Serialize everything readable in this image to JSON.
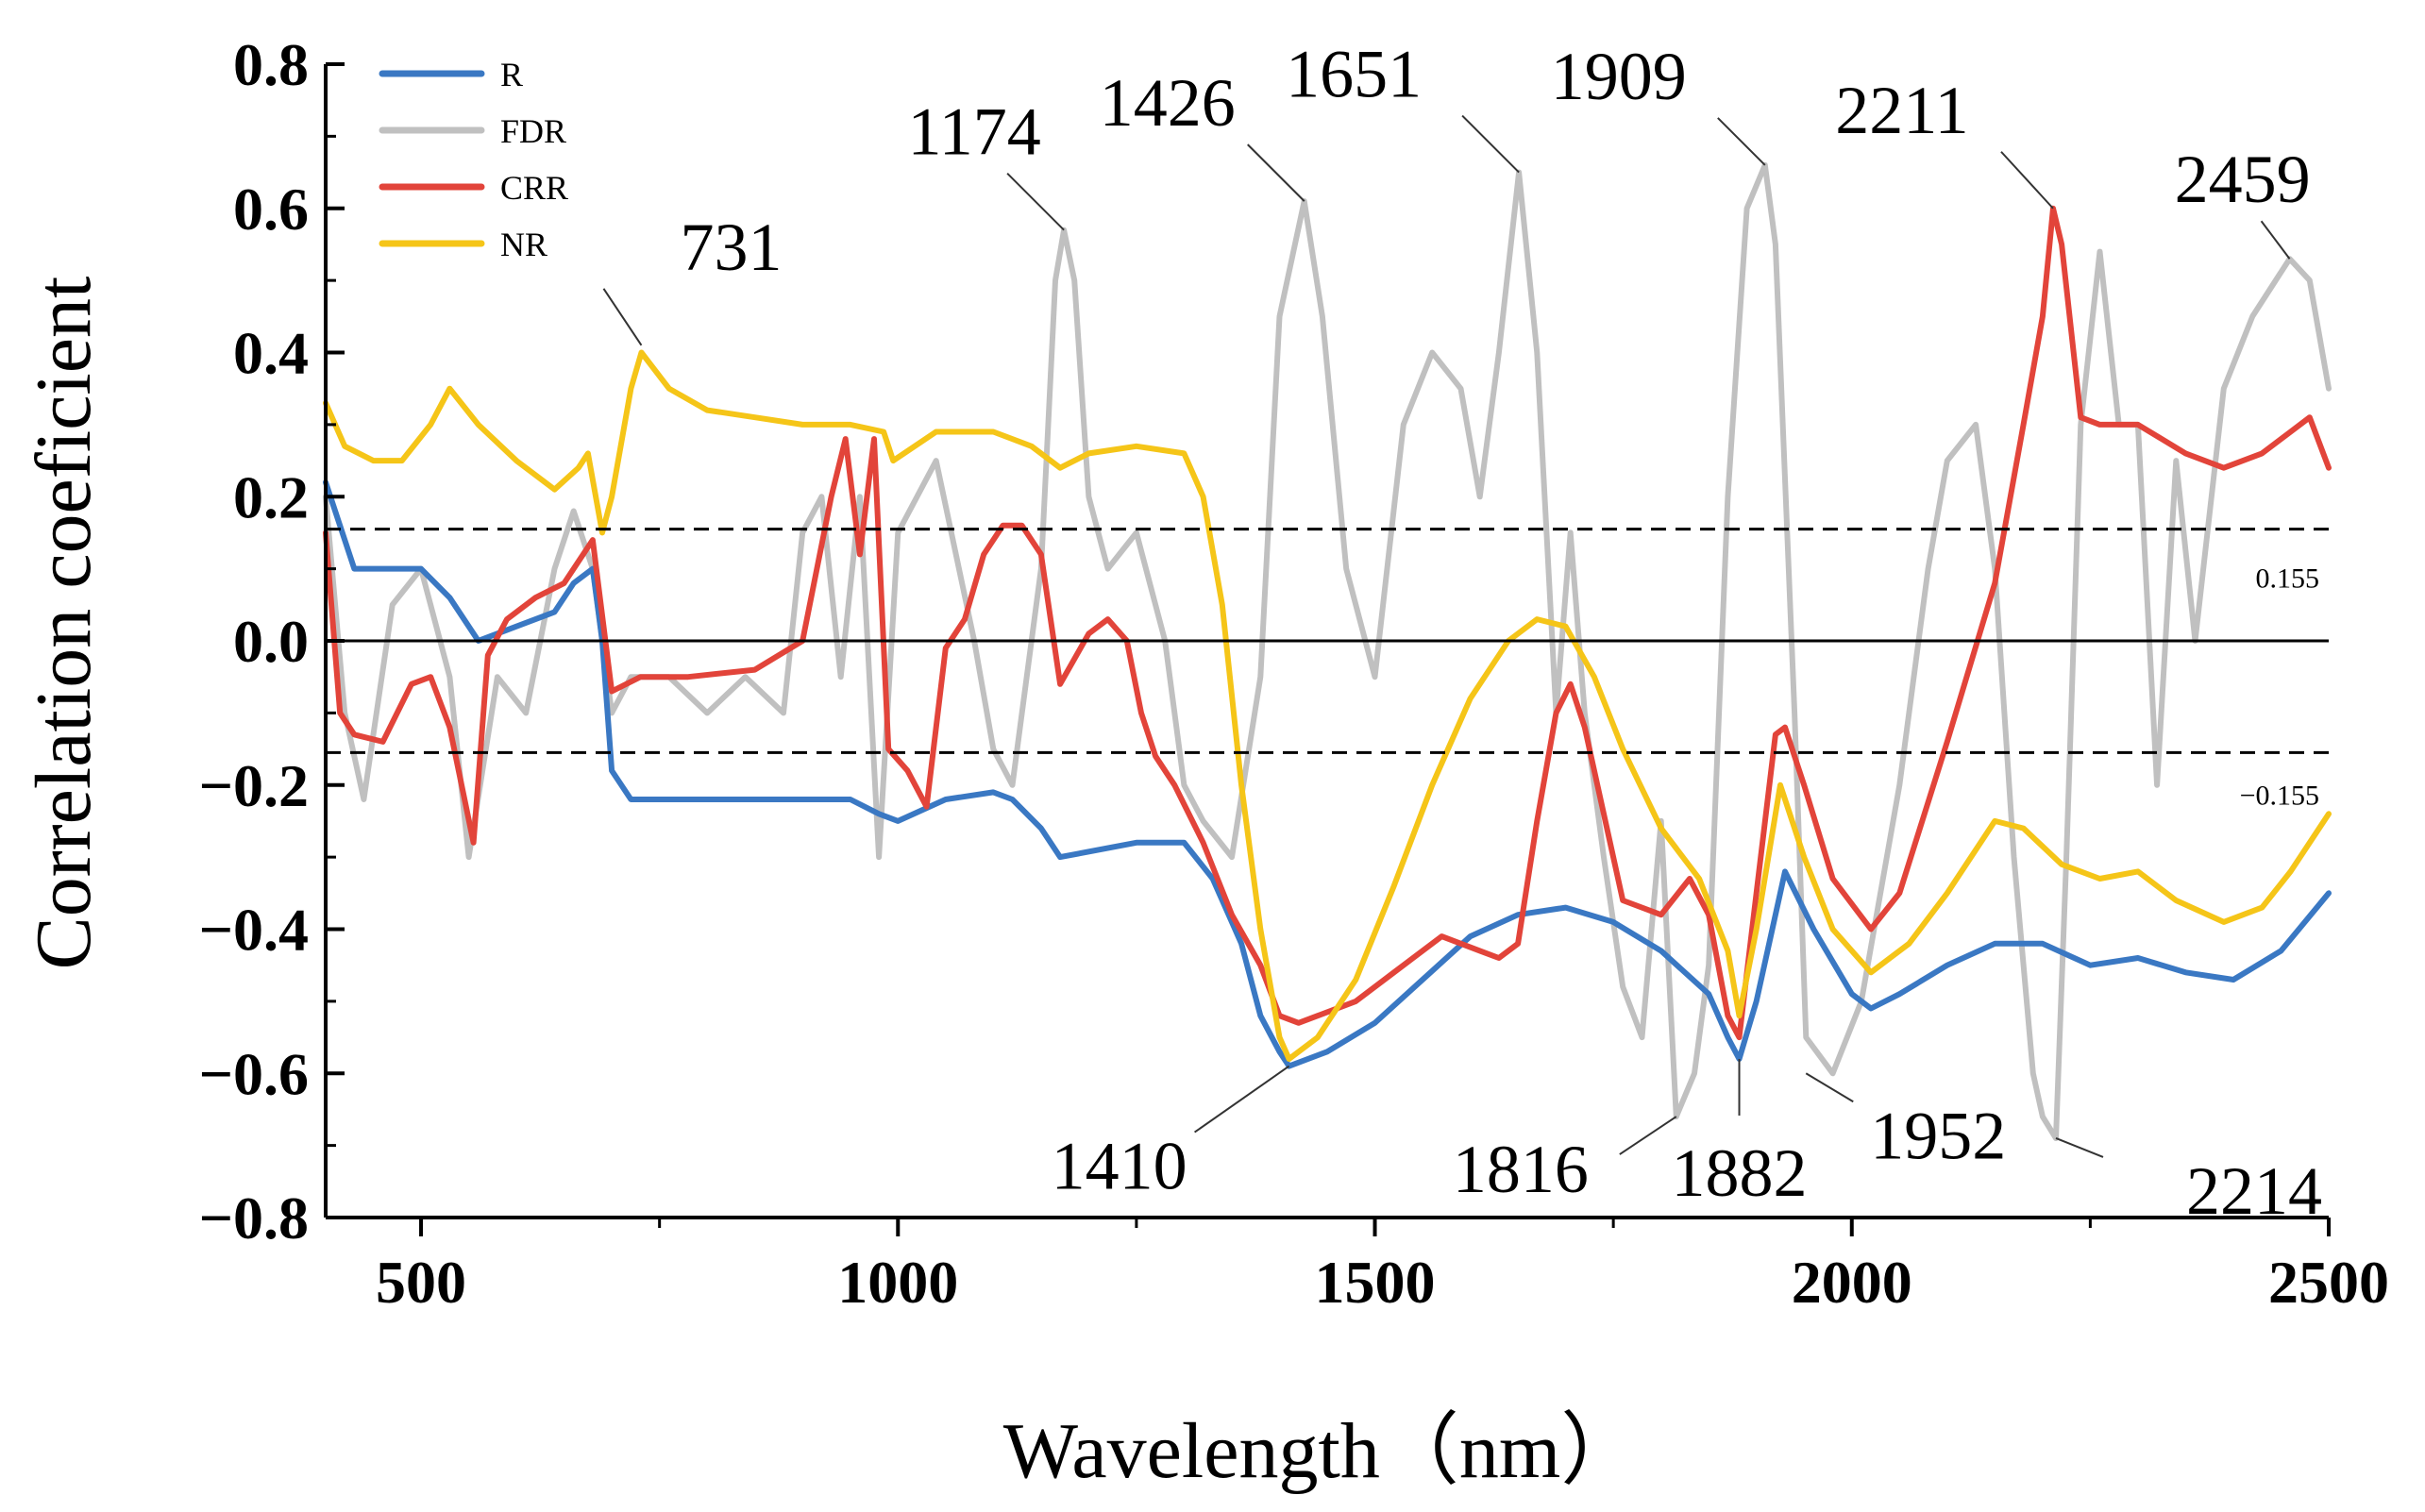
{
  "chart_data": {
    "type": "line",
    "xlabel": "Wavelength（nm）",
    "ylabel": "Correlation coeficient",
    "xlim": [
      400,
      2500
    ],
    "ylim": [
      -0.8,
      0.8
    ],
    "x_ticks": [
      500,
      1000,
      1500,
      2000,
      2500
    ],
    "x_tick_labels": [
      "500",
      "1000",
      "1500",
      "2000",
      "2500"
    ],
    "y_ticks": [
      -0.8,
      -0.6,
      -0.4,
      -0.2,
      0.0,
      0.2,
      0.4,
      0.6,
      0.8
    ],
    "y_tick_labels": [
      "−0.8",
      "−0.6",
      "−0.4",
      "−0.2",
      "0.0",
      "0.2",
      "0.4",
      "0.6",
      "0.8"
    ],
    "grid": false,
    "legend_position": "top-left",
    "zero_line": 0,
    "thresholds": [
      {
        "value": 0.155,
        "label": "0.155"
      },
      {
        "value": -0.155,
        "label": "−0.155"
      }
    ],
    "series": [
      {
        "name": "R",
        "color": "#3a78c3",
        "x": [
          400,
          430,
          460,
          500,
          530,
          560,
          600,
          640,
          660,
          680,
          690,
          700,
          720,
          800,
          900,
          950,
          980,
          1000,
          1050,
          1100,
          1120,
          1150,
          1170,
          1250,
          1300,
          1330,
          1360,
          1380,
          1400,
          1410,
          1450,
          1500,
          1550,
          1600,
          1650,
          1700,
          1750,
          1800,
          1850,
          1870,
          1882,
          1900,
          1930,
          1960,
          2000,
          2020,
          2050,
          2100,
          2150,
          2200,
          2250,
          2300,
          2350,
          2400,
          2450,
          2500
        ],
        "y": [
          0.22,
          0.1,
          0.1,
          0.1,
          0.06,
          0.0,
          0.02,
          0.04,
          0.08,
          0.1,
          0.0,
          -0.18,
          -0.22,
          -0.22,
          -0.22,
          -0.22,
          -0.24,
          -0.25,
          -0.22,
          -0.21,
          -0.22,
          -0.26,
          -0.3,
          -0.28,
          -0.28,
          -0.33,
          -0.42,
          -0.52,
          -0.57,
          -0.59,
          -0.57,
          -0.53,
          -0.47,
          -0.41,
          -0.38,
          -0.37,
          -0.39,
          -0.43,
          -0.49,
          -0.55,
          -0.58,
          -0.5,
          -0.32,
          -0.4,
          -0.49,
          -0.51,
          -0.49,
          -0.45,
          -0.42,
          -0.42,
          -0.45,
          -0.44,
          -0.46,
          -0.47,
          -0.43,
          -0.35
        ]
      },
      {
        "name": "FDR",
        "color": "#c0c0c0",
        "x": [
          400,
          420,
          440,
          470,
          500,
          530,
          550,
          580,
          610,
          640,
          660,
          680,
          700,
          720,
          760,
          800,
          840,
          880,
          900,
          920,
          940,
          960,
          980,
          1000,
          1040,
          1080,
          1100,
          1120,
          1150,
          1165,
          1174,
          1185,
          1200,
          1220,
          1250,
          1280,
          1300,
          1320,
          1350,
          1380,
          1400,
          1426,
          1445,
          1470,
          1500,
          1530,
          1560,
          1590,
          1610,
          1630,
          1651,
          1670,
          1690,
          1705,
          1720,
          1740,
          1760,
          1780,
          1800,
          1816,
          1835,
          1850,
          1870,
          1890,
          1909,
          1920,
          1940,
          1952,
          1980,
          2010,
          2050,
          2080,
          2100,
          2130,
          2150,
          2170,
          2190,
          2200,
          2214,
          2225,
          2240,
          2260,
          2280,
          2300,
          2320,
          2340,
          2360,
          2390,
          2420,
          2459,
          2480,
          2500
        ],
        "y": [
          0.2,
          -0.1,
          -0.22,
          0.05,
          0.1,
          -0.05,
          -0.3,
          -0.05,
          -0.1,
          0.1,
          0.18,
          0.1,
          -0.1,
          -0.05,
          -0.05,
          -0.1,
          -0.05,
          -0.1,
          0.15,
          0.2,
          -0.05,
          0.2,
          -0.3,
          0.15,
          0.25,
          0.0,
          -0.15,
          -0.2,
          0.1,
          0.5,
          0.57,
          0.5,
          0.2,
          0.1,
          0.15,
          0.0,
          -0.2,
          -0.25,
          -0.3,
          -0.05,
          0.45,
          0.61,
          0.45,
          0.1,
          -0.05,
          0.3,
          0.4,
          0.35,
          0.2,
          0.4,
          0.65,
          0.4,
          -0.1,
          0.15,
          -0.1,
          -0.3,
          -0.48,
          -0.55,
          -0.25,
          -0.66,
          -0.6,
          -0.45,
          0.2,
          0.6,
          0.66,
          0.55,
          -0.1,
          -0.55,
          -0.6,
          -0.5,
          -0.2,
          0.1,
          0.25,
          0.3,
          0.1,
          -0.3,
          -0.6,
          -0.66,
          -0.69,
          -0.3,
          0.3,
          0.54,
          0.3,
          0.3,
          -0.2,
          0.25,
          0.0,
          0.35,
          0.45,
          0.53,
          0.5,
          0.35
        ]
      },
      {
        "name": "CRR",
        "color": "#e2443a",
        "x": [
          400,
          415,
          430,
          460,
          490,
          510,
          530,
          555,
          570,
          590,
          620,
          650,
          680,
          700,
          730,
          780,
          850,
          900,
          930,
          945,
          960,
          975,
          990,
          1010,
          1030,
          1050,
          1070,
          1090,
          1110,
          1130,
          1150,
          1170,
          1200,
          1220,
          1240,
          1255,
          1270,
          1290,
          1320,
          1350,
          1380,
          1400,
          1420,
          1440,
          1480,
          1520,
          1570,
          1610,
          1630,
          1650,
          1670,
          1690,
          1705,
          1720,
          1760,
          1800,
          1830,
          1850,
          1870,
          1882,
          1900,
          1920,
          1930,
          1950,
          1980,
          2020,
          2050,
          2100,
          2150,
          2180,
          2200,
          2211,
          2220,
          2240,
          2260,
          2300,
          2350,
          2390,
          2430,
          2460,
          2480,
          2500
        ],
        "y": [
          0.15,
          -0.1,
          -0.13,
          -0.14,
          -0.06,
          -0.05,
          -0.12,
          -0.28,
          -0.02,
          0.03,
          0.06,
          0.08,
          0.14,
          -0.07,
          -0.05,
          -0.05,
          -0.04,
          0.0,
          0.2,
          0.28,
          0.12,
          0.28,
          -0.15,
          -0.18,
          -0.23,
          -0.01,
          0.03,
          0.12,
          0.16,
          0.16,
          0.12,
          -0.06,
          0.01,
          0.03,
          0.0,
          -0.1,
          -0.16,
          -0.2,
          -0.28,
          -0.38,
          -0.45,
          -0.52,
          -0.53,
          -0.52,
          -0.5,
          -0.46,
          -0.41,
          -0.43,
          -0.44,
          -0.42,
          -0.25,
          -0.1,
          -0.06,
          -0.12,
          -0.36,
          -0.38,
          -0.33,
          -0.38,
          -0.52,
          -0.55,
          -0.35,
          -0.13,
          -0.12,
          -0.2,
          -0.33,
          -0.4,
          -0.35,
          -0.14,
          0.08,
          0.3,
          0.45,
          0.6,
          0.55,
          0.31,
          0.3,
          0.3,
          0.26,
          0.24,
          0.26,
          0.29,
          0.31,
          0.24
        ]
      },
      {
        "name": "NR",
        "color": "#f5c518",
        "x": [
          400,
          420,
          450,
          480,
          510,
          530,
          560,
          600,
          640,
          665,
          675,
          690,
          700,
          720,
          731,
          760,
          800,
          850,
          900,
          950,
          985,
          995,
          1040,
          1100,
          1140,
          1170,
          1200,
          1250,
          1300,
          1320,
          1340,
          1360,
          1380,
          1400,
          1410,
          1440,
          1480,
          1520,
          1560,
          1600,
          1640,
          1670,
          1700,
          1730,
          1760,
          1800,
          1840,
          1870,
          1882,
          1900,
          1925,
          1950,
          1980,
          2020,
          2060,
          2100,
          2150,
          2180,
          2220,
          2260,
          2300,
          2340,
          2390,
          2430,
          2460,
          2500
        ],
        "y": [
          0.33,
          0.27,
          0.25,
          0.25,
          0.3,
          0.35,
          0.3,
          0.25,
          0.21,
          0.24,
          0.26,
          0.15,
          0.2,
          0.35,
          0.4,
          0.35,
          0.32,
          0.31,
          0.3,
          0.3,
          0.29,
          0.25,
          0.29,
          0.29,
          0.27,
          0.24,
          0.26,
          0.27,
          0.26,
          0.2,
          0.05,
          -0.2,
          -0.4,
          -0.55,
          -0.58,
          -0.55,
          -0.47,
          -0.34,
          -0.2,
          -0.08,
          0.0,
          0.03,
          0.02,
          -0.05,
          -0.15,
          -0.26,
          -0.33,
          -0.43,
          -0.52,
          -0.4,
          -0.2,
          -0.3,
          -0.4,
          -0.46,
          -0.42,
          -0.35,
          -0.25,
          -0.26,
          -0.31,
          -0.33,
          -0.32,
          -0.36,
          -0.39,
          -0.37,
          -0.32,
          -0.24
        ]
      }
    ],
    "annotations": [
      {
        "label": "731",
        "x": 731,
        "y": 0.41
      },
      {
        "label": "1174",
        "x": 1174,
        "y": 0.57
      },
      {
        "label": "1426",
        "x": 1426,
        "y": 0.61
      },
      {
        "label": "1651",
        "x": 1651,
        "y": 0.65
      },
      {
        "label": "1909",
        "x": 1909,
        "y": 0.66
      },
      {
        "label": "2211",
        "x": 2211,
        "y": 0.6
      },
      {
        "label": "2459",
        "x": 2459,
        "y": 0.53
      },
      {
        "label": "1410",
        "x": 1410,
        "y": -0.59
      },
      {
        "label": "1816",
        "x": 1816,
        "y": -0.66
      },
      {
        "label": "1882",
        "x": 1882,
        "y": -0.58
      },
      {
        "label": "1952",
        "x": 1952,
        "y": -0.6
      },
      {
        "label": "2214",
        "x": 2214,
        "y": -0.69
      }
    ]
  }
}
